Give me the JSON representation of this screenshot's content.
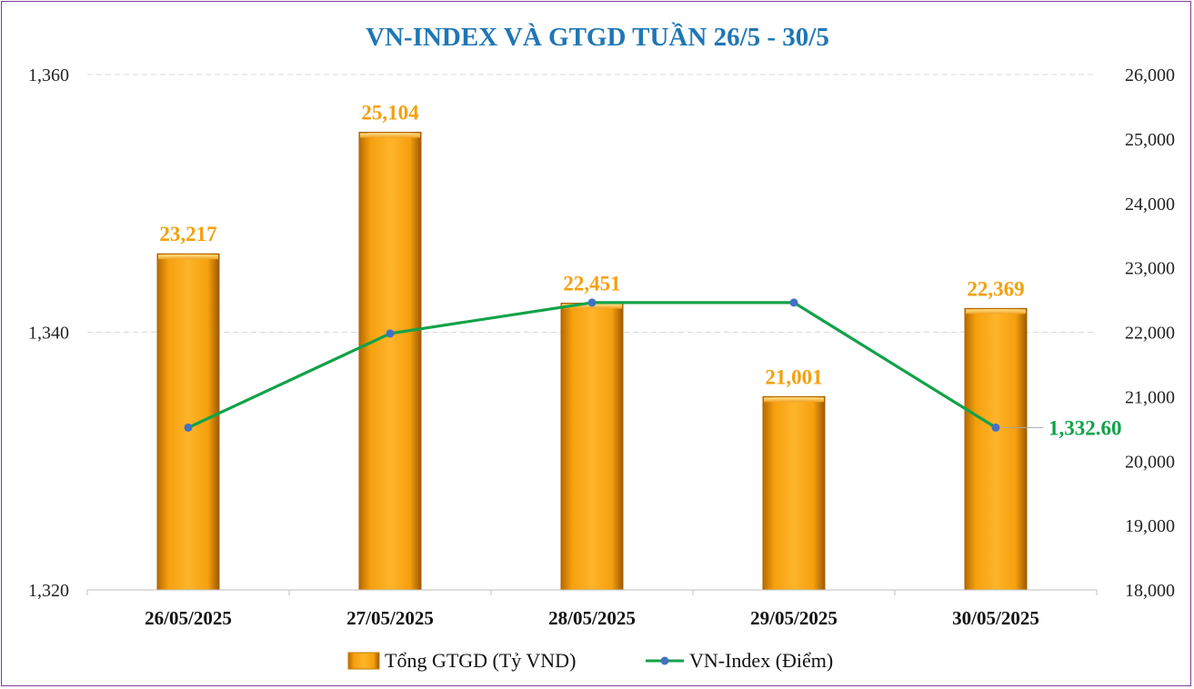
{
  "chart_data": {
    "type": "bar",
    "title": "VN-INDEX VÀ GTGD TUẦN 26/5 -  30/5",
    "categories": [
      "26/05/2025",
      "27/05/2025",
      "28/05/2025",
      "29/05/2025",
      "30/05/2025"
    ],
    "series": [
      {
        "name": "Tổng GTGD (Tỷ VND)",
        "type": "bar",
        "axis": "right",
        "values": [
          23217,
          25104,
          22451,
          21001,
          22369
        ],
        "labels": [
          "23,217",
          "25,104",
          "22,451",
          "21,001",
          "22,369"
        ],
        "color": "#f5a00e"
      },
      {
        "name": "VN-Index (Điểm)",
        "type": "line",
        "axis": "left",
        "values": [
          1332.6,
          1339.9,
          1342.3,
          1342.3,
          1332.6
        ],
        "last_label": "1,332.60",
        "color": "#12a24a",
        "marker_color": "#4472c4"
      }
    ],
    "y_left": {
      "min": 1320,
      "max": 1360,
      "ticks": [
        1320,
        1340,
        1360
      ],
      "tick_labels": [
        "1,320",
        "1,340",
        "1,360"
      ]
    },
    "y_right": {
      "min": 18000,
      "max": 26000,
      "ticks": [
        18000,
        19000,
        20000,
        21000,
        22000,
        23000,
        24000,
        25000,
        26000
      ],
      "tick_labels": [
        "18,000",
        "19,000",
        "20,000",
        "21,000",
        "22,000",
        "23,000",
        "24,000",
        "25,000",
        "26,000"
      ]
    },
    "grid": true,
    "legend_position": "bottom",
    "colors": {
      "title": "#1f77b4",
      "bar_fill": "#f5a00e",
      "bar_label": "#f5a00e",
      "line": "#12a24a",
      "marker": "#4472c4",
      "line_label": "#12a24a",
      "frame": "#7f3f98"
    }
  }
}
